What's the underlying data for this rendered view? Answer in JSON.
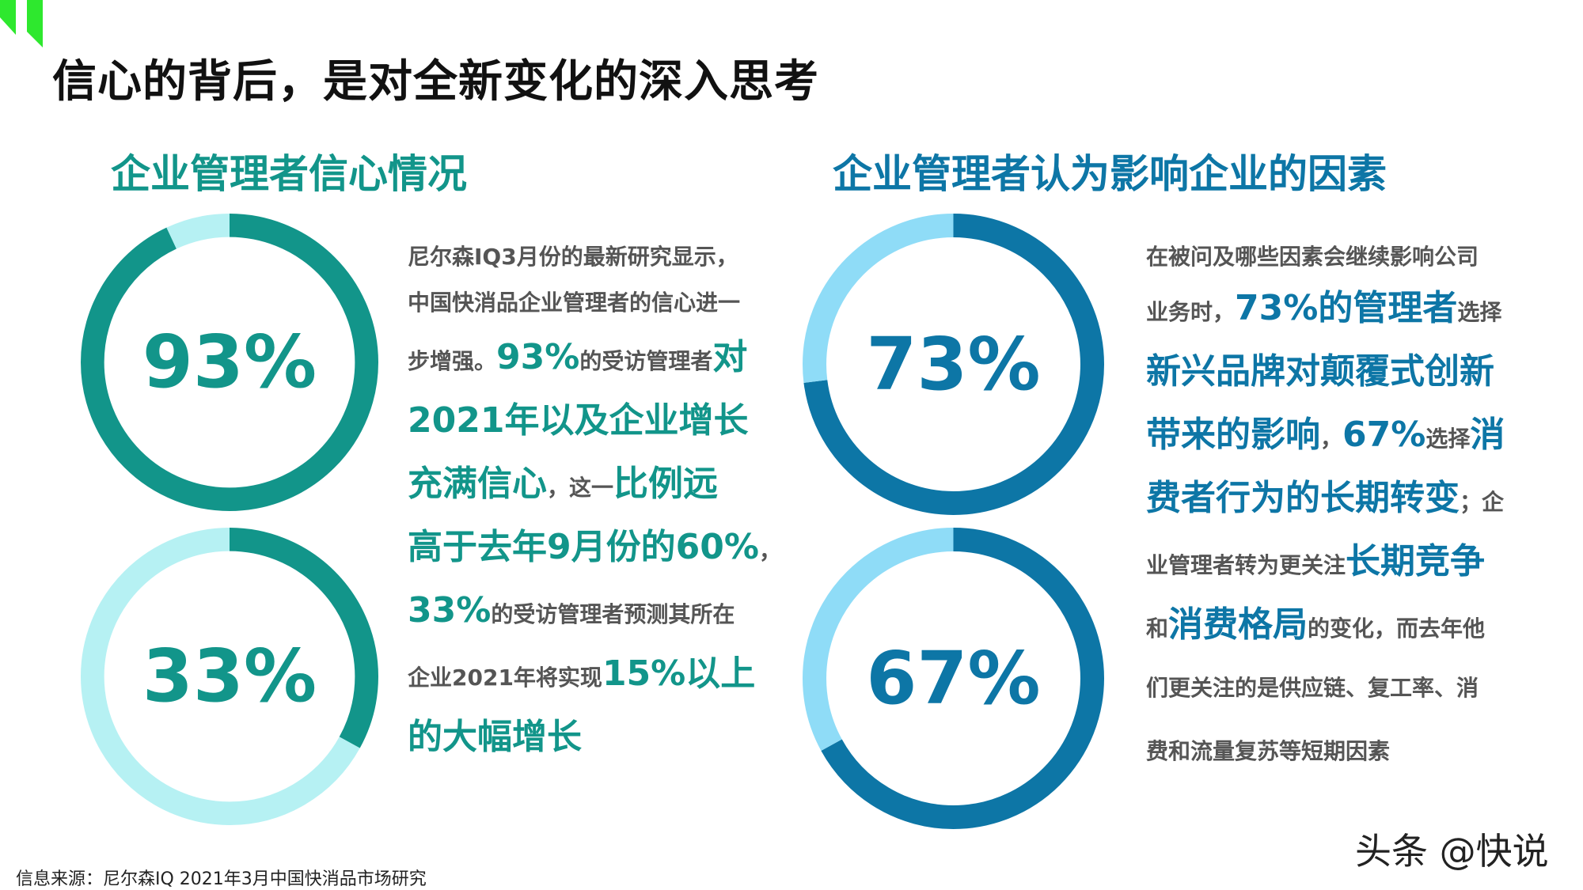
{
  "title": "信心的背后，是对全新变化的深入思考",
  "left_section": {
    "heading": "企业管理者信心情况",
    "paragraph": [
      [
        {
          "t": "尼尔森IQ3月份的最新研究显示，",
          "h": ""
        }
      ],
      [
        {
          "t": "中国快消品企业管理者的信心进一",
          "h": ""
        }
      ],
      [
        {
          "t": "步增强。",
          "h": ""
        },
        {
          "t": "93%",
          "h": "t"
        },
        {
          "t": "的受访管理者",
          "h": ""
        },
        {
          "t": "对",
          "h": "t"
        }
      ],
      [
        {
          "t": "2021年以及企业增长",
          "h": "t"
        }
      ],
      [
        {
          "t": "充满信心",
          "h": "t"
        },
        {
          "t": "，这一",
          "h": ""
        },
        {
          "t": "比例远",
          "h": "t"
        }
      ],
      [
        {
          "t": "高于去年9月份的60%",
          "h": "t"
        },
        {
          "t": "，",
          "h": ""
        }
      ],
      [
        {
          "t": "33%",
          "h": "t"
        },
        {
          "t": "的受访管理者预测其所在",
          "h": ""
        }
      ],
      [
        {
          "t": "企业2021年将实现",
          "h": ""
        },
        {
          "t": "15%以上",
          "h": "t"
        }
      ],
      [
        {
          "t": "的大幅增长",
          "h": "t"
        }
      ]
    ]
  },
  "right_section": {
    "heading": "企业管理者认为影响企业的因素",
    "paragraph": [
      [
        {
          "t": "在被问及哪些因素会继续影响公司",
          "h": ""
        }
      ],
      [
        {
          "t": "业务时，",
          "h": ""
        },
        {
          "t": "73%的管理者",
          "h": "b"
        },
        {
          "t": "选择",
          "h": ""
        }
      ],
      [
        {
          "t": "新兴品牌对颠覆式创新",
          "h": "b"
        }
      ],
      [
        {
          "t": "带来的影响",
          "h": "b"
        },
        {
          "t": "，",
          "h": ""
        },
        {
          "t": "67%",
          "h": "b"
        },
        {
          "t": "选择",
          "h": ""
        },
        {
          "t": "消",
          "h": "b"
        }
      ],
      [
        {
          "t": "费者行为的长期转变",
          "h": "b"
        },
        {
          "t": "；企",
          "h": ""
        }
      ],
      [
        {
          "t": "业管理者转为更关注",
          "h": ""
        },
        {
          "t": "长期竞争",
          "h": "b"
        }
      ],
      [
        {
          "t": "和",
          "h": ""
        },
        {
          "t": "消费格局",
          "h": "b"
        },
        {
          "t": "的变化，而去年他",
          "h": ""
        }
      ],
      [
        {
          "t": "们更关注的是供应链、复工率、消",
          "h": ""
        }
      ],
      [
        {
          "t": "费和流量复苏等短期因素",
          "h": ""
        }
      ]
    ]
  },
  "chart_data": [
    {
      "type": "pie",
      "donut": true,
      "slices": [
        {
          "value": 93
        },
        {
          "value": 7
        }
      ],
      "center_label": "93%",
      "colors": [
        "#12958a",
        "#b6f1f3"
      ]
    },
    {
      "type": "pie",
      "donut": true,
      "slices": [
        {
          "value": 33
        },
        {
          "value": 67
        }
      ],
      "center_label": "33%",
      "colors": [
        "#12958a",
        "#b6f1f3"
      ]
    },
    {
      "type": "pie",
      "donut": true,
      "slices": [
        {
          "value": 73
        },
        {
          "value": 27
        }
      ],
      "center_label": "73%",
      "colors": [
        "#0d76a6",
        "#8fdcf7"
      ]
    },
    {
      "type": "pie",
      "donut": true,
      "slices": [
        {
          "value": 67
        },
        {
          "value": 33
        }
      ],
      "center_label": "67%",
      "colors": [
        "#0d76a6",
        "#8fdcf7"
      ]
    }
  ],
  "source": "信息来源：尼尔森IQ 2021年3月中国快消品市场研究",
  "watermark": "头条 @快说",
  "colors": {
    "teal": "#12958a",
    "light_teal": "#b6f1f3",
    "blue": "#0d76a6",
    "light_blue": "#8fdcf7",
    "logo_green": "#2ee82e"
  }
}
